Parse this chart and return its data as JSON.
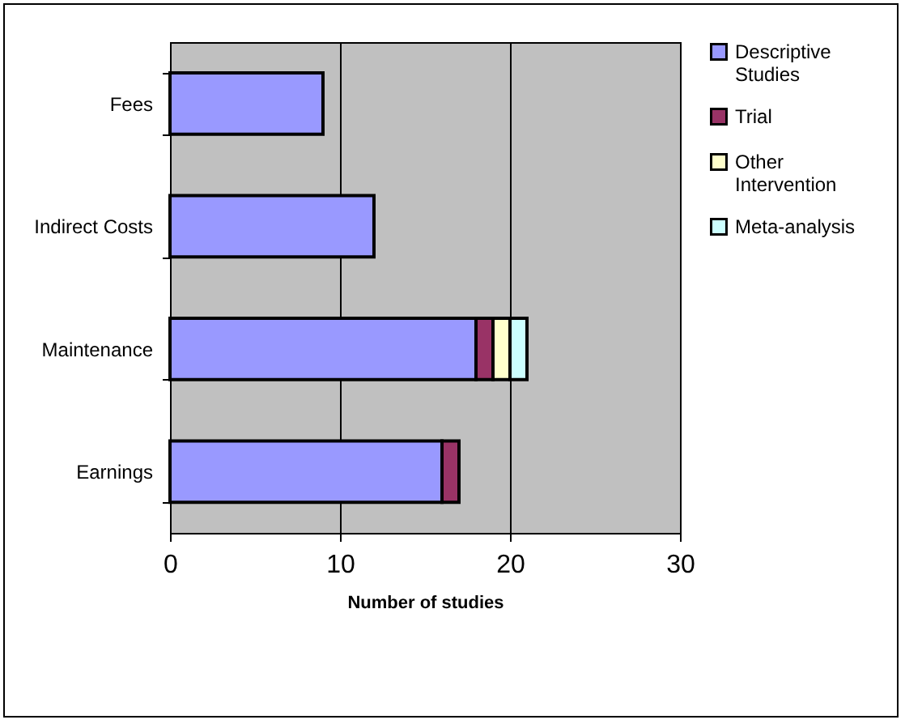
{
  "chart_data": {
    "type": "bar",
    "orientation": "horizontal",
    "stacked": true,
    "xlabel": "Number of studies",
    "categories": [
      "Fees",
      "Indirect Costs",
      "Maintenance",
      "Earnings"
    ],
    "series": [
      {
        "name": "Descriptive Studies",
        "color": "#9999ff",
        "values": [
          9,
          12,
          18,
          16
        ]
      },
      {
        "name": "Trial",
        "color": "#993366",
        "values": [
          null,
          null,
          1,
          1
        ]
      },
      {
        "name": "Other Intervention",
        "color": "#ffffcc",
        "values": [
          null,
          null,
          1,
          null
        ]
      },
      {
        "name": "Meta-analysis",
        "color": "#ccffff",
        "values": [
          null,
          null,
          1,
          null
        ]
      }
    ],
    "xlim": [
      0,
      30
    ],
    "xticks": [
      0,
      10,
      20,
      30
    ],
    "grid": "x",
    "legend": "right"
  }
}
